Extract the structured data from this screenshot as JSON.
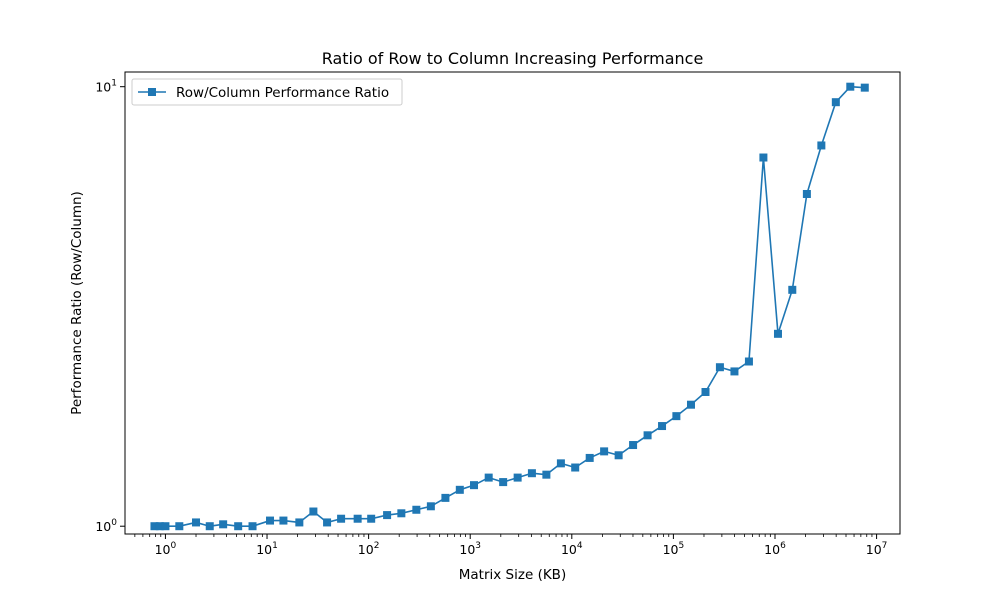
{
  "chart_data": {
    "type": "line",
    "title": "Ratio of Row to Column Increasing Performance",
    "xlabel": "Matrix Size (KB)",
    "ylabel": "Performance Ratio (Row/Column)",
    "xscale": "log",
    "yscale": "log",
    "xlim": [
      0.4,
      17000000
    ],
    "ylim": [
      0.96,
      10.8
    ],
    "grid": false,
    "legend_position": "top-left",
    "x_tick_exponents": [
      0,
      1,
      2,
      3,
      4,
      5,
      6,
      7
    ],
    "x_tick_labels": [
      {
        "base": "10",
        "exp": "0"
      },
      {
        "base": "10",
        "exp": "1"
      },
      {
        "base": "10",
        "exp": "2"
      },
      {
        "base": "10",
        "exp": "3"
      },
      {
        "base": "10",
        "exp": "4"
      },
      {
        "base": "10",
        "exp": "5"
      },
      {
        "base": "10",
        "exp": "6"
      },
      {
        "base": "10",
        "exp": "7"
      }
    ],
    "y_tick_labels": [
      {
        "value": 1,
        "base": "10",
        "exp": "0"
      },
      {
        "value": 10,
        "base": "10",
        "exp": "1"
      }
    ],
    "series": [
      {
        "name": "Row/Column Performance Ratio",
        "color": "#1f77b4",
        "marker": "square",
        "x": [
          0.78,
          0.88,
          1.0,
          1.37,
          2.0,
          2.73,
          3.7,
          5.2,
          7.2,
          10.7,
          14.5,
          20.8,
          28.6,
          39.0,
          53.6,
          78.0,
          106,
          152,
          210,
          295,
          410,
          570,
          790,
          1090,
          1520,
          2110,
          2930,
          4050,
          5620,
          7810,
          10800,
          15000,
          20800,
          28900,
          40100,
          55700,
          77300,
          107000,
          149000,
          207000,
          287000,
          399000,
          554000,
          769000,
          1070000,
          1480000,
          2060000,
          2860000,
          3970000,
          5510000,
          7650000
        ],
        "y": [
          1.0,
          1.0,
          1.0,
          1.0,
          1.02,
          1.0,
          1.01,
          1.0,
          1.0,
          1.03,
          1.03,
          1.02,
          1.08,
          1.02,
          1.04,
          1.04,
          1.04,
          1.06,
          1.07,
          1.09,
          1.11,
          1.16,
          1.21,
          1.24,
          1.29,
          1.26,
          1.29,
          1.32,
          1.31,
          1.39,
          1.36,
          1.43,
          1.48,
          1.45,
          1.53,
          1.61,
          1.69,
          1.78,
          1.89,
          2.02,
          2.3,
          2.25,
          2.37,
          6.9,
          2.74,
          3.45,
          5.7,
          7.35,
          9.22,
          10.0,
          9.95
        ]
      }
    ]
  }
}
